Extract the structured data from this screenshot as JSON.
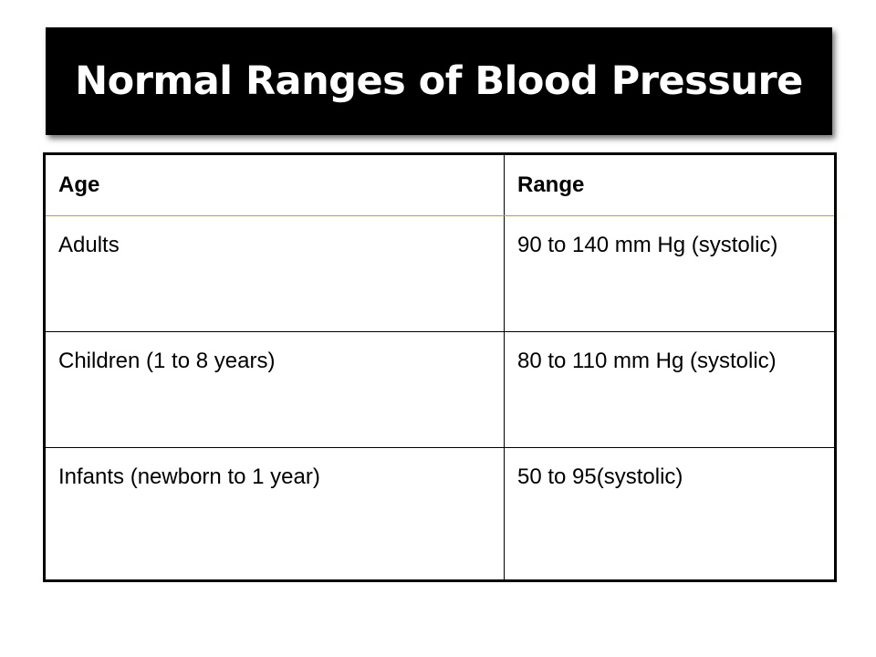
{
  "slide": {
    "title": "Normal Ranges of Blood Pressure"
  },
  "table": {
    "headers": [
      "Age",
      "Range"
    ],
    "rows": [
      {
        "age": "Adults",
        "range": "90 to 140 mm Hg (systolic)"
      },
      {
        "age": "Children (1 to 8 years)",
        "range": "80 to 110 mm Hg (systolic)"
      },
      {
        "age": "Infants (newborn to 1 year)",
        "range": "50 to 95(systolic)"
      }
    ]
  },
  "colors": {
    "banner_background": "#000000",
    "title_text": "#ffffff",
    "table_border": "#000000",
    "header_divider": "#c8963c"
  }
}
